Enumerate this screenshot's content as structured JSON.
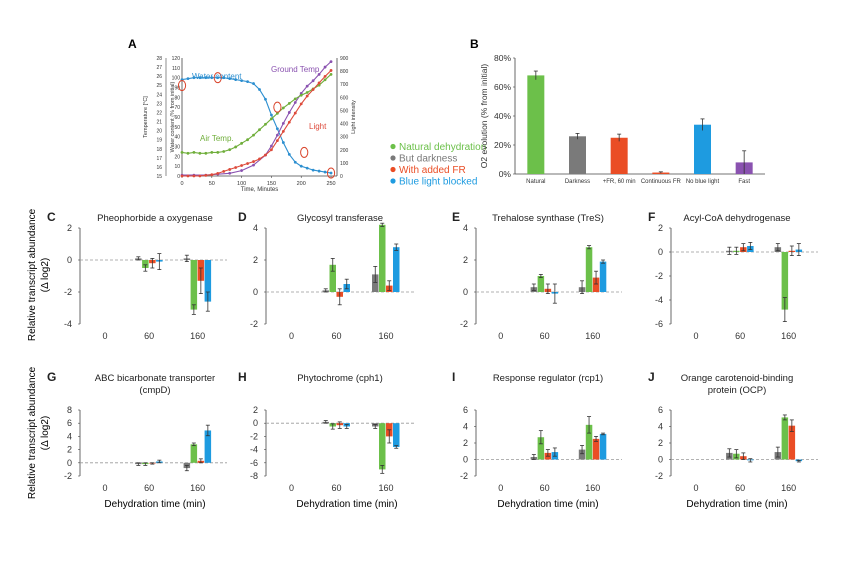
{
  "colors": {
    "natural": "#6cc04a",
    "dark": "#7a7a7a",
    "fr": "#ea4d25",
    "noblue": "#1e9be0",
    "water": "#2d8fd0",
    "ground": "#8a52b0",
    "air": "#6fae3a",
    "light_line": "#dd4a3b",
    "axis": "#444444"
  },
  "legend": {
    "items": [
      {
        "label": "Natural dehydration",
        "color": "#6cc04a"
      },
      {
        "label": "But darkness",
        "color": "#7a7a7a"
      },
      {
        "label": "With added FR",
        "color": "#ea4d25"
      },
      {
        "label": "Blue light blocked",
        "color": "#1e9be0"
      }
    ]
  },
  "row_ylabel": [
    "Relative transcript abundance",
    "(Δ log2)"
  ],
  "xlabel_bottom": "Dehydration time (min)",
  "chart_data": [
    {
      "id": "A",
      "type": "line",
      "xlabel": "Time, Minutes",
      "ylabel_left": "Temperature [°C]",
      "ylabel_mid": "Water content (% from initial)",
      "ylabel_right": "Light intensity",
      "x_ticks": [
        0,
        50,
        100,
        150,
        200,
        250
      ],
      "xlim": [
        0,
        260
      ],
      "temp_ticks": [
        15,
        16,
        17,
        18,
        19,
        20,
        21,
        22,
        23,
        24,
        25,
        26,
        27,
        28
      ],
      "temp_lim": [
        15,
        28
      ],
      "water_ticks": [
        0,
        10,
        20,
        30,
        40,
        50,
        60,
        70,
        80,
        90,
        100,
        110,
        120
      ],
      "water_lim": [
        0,
        120
      ],
      "light_ticks": [
        0,
        100,
        200,
        300,
        400,
        500,
        600,
        700,
        800,
        900
      ],
      "light_lim": [
        0,
        900
      ],
      "annotations": {
        "water": "Water content",
        "ground": "Ground Temp",
        "air": "Air Temp.",
        "light": "Light"
      },
      "series": [
        {
          "name": "Water content",
          "axis": "water",
          "color_key": "water",
          "x": [
            0,
            10,
            20,
            30,
            40,
            50,
            60,
            70,
            80,
            90,
            100,
            110,
            120,
            130,
            140,
            150,
            160,
            170,
            180,
            190,
            200,
            210,
            220,
            230,
            240,
            250
          ],
          "y": [
            98,
            99,
            100,
            100,
            100,
            100,
            100,
            100,
            99,
            98,
            97,
            96,
            94,
            88,
            78,
            62,
            48,
            34,
            22,
            14,
            10,
            8,
            6,
            5,
            4,
            3
          ]
        },
        {
          "name": "Ground Temp",
          "axis": "temp",
          "color_key": "ground",
          "x": [
            0,
            20,
            40,
            60,
            80,
            100,
            120,
            140,
            150,
            160,
            170,
            180,
            190,
            200,
            210,
            220,
            230,
            240,
            250
          ],
          "y": [
            15.1,
            15.1,
            15.1,
            15.2,
            15.3,
            15.6,
            16.2,
            17.3,
            18.3,
            19.5,
            20.8,
            22.0,
            23.1,
            24.1,
            24.9,
            25.5,
            26.2,
            27.0,
            27.6
          ]
        },
        {
          "name": "Air Temp.",
          "axis": "temp",
          "color_key": "air",
          "x": [
            0,
            10,
            20,
            30,
            40,
            50,
            60,
            70,
            80,
            90,
            100,
            110,
            120,
            130,
            140,
            150,
            160,
            170,
            180,
            190,
            200,
            210,
            220,
            230,
            240,
            250
          ],
          "y": [
            17.6,
            17.5,
            17.6,
            17.5,
            17.5,
            17.6,
            17.6,
            17.7,
            17.9,
            18.2,
            18.6,
            19.0,
            19.5,
            20.1,
            20.7,
            21.3,
            21.9,
            22.5,
            23.0,
            23.5,
            23.9,
            24.2,
            24.6,
            25.0,
            25.6,
            26.2
          ]
        },
        {
          "name": "Light",
          "axis": "light",
          "color_key": "light_line",
          "x": [
            0,
            10,
            20,
            30,
            40,
            50,
            60,
            70,
            80,
            90,
            100,
            110,
            120,
            130,
            140,
            150,
            160,
            170,
            180,
            190,
            200,
            210,
            220,
            230,
            240,
            250
          ],
          "y": [
            0,
            0,
            0,
            0,
            5,
            10,
            20,
            35,
            50,
            65,
            80,
            95,
            110,
            130,
            160,
            200,
            270,
            340,
            410,
            480,
            550,
            610,
            660,
            710,
            760,
            805
          ]
        }
      ],
      "circled_points": [
        {
          "x": 0,
          "y": 92
        },
        {
          "x": 60,
          "y": 100
        },
        {
          "x": 160,
          "y": 70
        },
        {
          "x": 205,
          "y": 24
        },
        {
          "x": 250,
          "y": 3
        }
      ]
    },
    {
      "id": "B",
      "type": "bar",
      "ylabel": "O2 evolution (% from initial)",
      "y_ticks": [
        "0%",
        "20%",
        "40%",
        "60%",
        "80%"
      ],
      "ylim": [
        0,
        80
      ],
      "categories": [
        "Natural",
        "Darkness",
        "+FR, 60 min",
        "Continuous FR",
        "No blue light",
        "Fast"
      ],
      "values": [
        68,
        26,
        25,
        1,
        34,
        8
      ],
      "errors": [
        3,
        2,
        2.5,
        0.5,
        4,
        8
      ],
      "color_keys": [
        "natural",
        "dark",
        "fr",
        "fr",
        "noblue",
        "ground"
      ]
    },
    {
      "id": "C",
      "type": "bar",
      "title": "Pheophorbide a oxygenase",
      "ylim": [
        -4,
        2
      ],
      "y_ticks": [
        -4,
        -2,
        0,
        2
      ],
      "categories": [
        "0",
        "60",
        "160"
      ],
      "series_keys": [
        "dark",
        "natural",
        "fr",
        "noblue"
      ],
      "values": [
        [
          0,
          0,
          0,
          0
        ],
        [
          0.1,
          -0.5,
          -0.2,
          -0.1
        ],
        [
          0.1,
          -3.1,
          -1.3,
          -2.6
        ]
      ],
      "errors": [
        [
          0,
          0,
          0,
          0
        ],
        [
          0.1,
          0.2,
          0.3,
          0.5
        ],
        [
          0.2,
          0.3,
          0.8,
          0.6
        ]
      ]
    },
    {
      "id": "D",
      "type": "bar",
      "title": "Glycosyl transferase",
      "ylim": [
        -2,
        4
      ],
      "y_ticks": [
        -2,
        0,
        2,
        4
      ],
      "categories": [
        "0",
        "60",
        "160"
      ],
      "series_keys": [
        "dark",
        "natural",
        "fr",
        "noblue"
      ],
      "values": [
        [
          0,
          0,
          0,
          0
        ],
        [
          0.1,
          1.7,
          -0.3,
          0.5
        ],
        [
          1.1,
          4.2,
          0.4,
          2.8
        ]
      ],
      "errors": [
        [
          0,
          0,
          0,
          0
        ],
        [
          0.1,
          0.4,
          0.5,
          0.3
        ],
        [
          0.5,
          0.1,
          0.3,
          0.2
        ]
      ]
    },
    {
      "id": "E",
      "type": "bar",
      "title": "Trehalose synthase (TreS)",
      "ylim": [
        -2,
        4
      ],
      "y_ticks": [
        -2,
        0,
        2,
        4
      ],
      "categories": [
        "0",
        "60",
        "160"
      ],
      "series_keys": [
        "dark",
        "natural",
        "fr",
        "noblue"
      ],
      "values": [
        [
          0,
          0,
          0,
          0
        ],
        [
          0.3,
          1.0,
          0.2,
          -0.1
        ],
        [
          0.3,
          2.8,
          0.9,
          1.9
        ]
      ],
      "errors": [
        [
          0,
          0,
          0,
          0
        ],
        [
          0.2,
          0.1,
          0.3,
          0.6
        ],
        [
          0.4,
          0.1,
          0.4,
          0.1
        ]
      ]
    },
    {
      "id": "F",
      "type": "bar",
      "title": "Acyl-CoA dehydrogenase",
      "ylim": [
        -6,
        2
      ],
      "y_ticks": [
        -6,
        -4,
        -2,
        0,
        2
      ],
      "categories": [
        "0",
        "60",
        "160"
      ],
      "series_keys": [
        "dark",
        "natural",
        "fr",
        "noblue"
      ],
      "values": [
        [
          0,
          0,
          0,
          0
        ],
        [
          0.1,
          0.1,
          0.4,
          0.5
        ],
        [
          0.4,
          -4.8,
          0.1,
          0.2
        ]
      ],
      "errors": [
        [
          0,
          0,
          0,
          0
        ],
        [
          0.3,
          0.3,
          0.3,
          0.3
        ],
        [
          0.3,
          1.0,
          0.4,
          0.5
        ]
      ]
    },
    {
      "id": "G",
      "type": "bar",
      "title": "ABC bicarbonate transporter (cmpD)",
      "ylim": [
        -2,
        8
      ],
      "y_ticks": [
        -2,
        0,
        2,
        4,
        6,
        8
      ],
      "categories": [
        "0",
        "60",
        "160"
      ],
      "series_keys": [
        "dark",
        "natural",
        "fr",
        "noblue"
      ],
      "values": [
        [
          0,
          0,
          0,
          0
        ],
        [
          -0.2,
          -0.2,
          -0.1,
          0.2
        ],
        [
          -0.8,
          2.8,
          0.3,
          4.9
        ]
      ],
      "errors": [
        [
          0,
          0,
          0,
          0
        ],
        [
          0.2,
          0.2,
          0.1,
          0.2
        ],
        [
          0.4,
          0.2,
          0.3,
          0.8
        ]
      ]
    },
    {
      "id": "H",
      "type": "bar",
      "title": "Phytochrome (cph1)",
      "ylim": [
        -8,
        2
      ],
      "y_ticks": [
        -8,
        -6,
        -4,
        -2,
        0,
        2
      ],
      "categories": [
        "0",
        "60",
        "160"
      ],
      "series_keys": [
        "dark",
        "natural",
        "fr",
        "noblue"
      ],
      "values": [
        [
          0,
          0,
          0,
          0
        ],
        [
          0.2,
          -0.5,
          -0.3,
          -0.5
        ],
        [
          -0.5,
          -7.0,
          -2.0,
          -3.6
        ]
      ],
      "errors": [
        [
          0,
          0,
          0,
          0
        ],
        [
          0.2,
          0.4,
          0.5,
          0.3
        ],
        [
          0.3,
          0.6,
          1.0,
          0.2
        ]
      ]
    },
    {
      "id": "I",
      "type": "bar",
      "title": "Response regulator (rcp1)",
      "ylim": [
        -2,
        6
      ],
      "y_ticks": [
        -2,
        0,
        2,
        4,
        6
      ],
      "categories": [
        "0",
        "60",
        "160"
      ],
      "series_keys": [
        "dark",
        "natural",
        "fr",
        "noblue"
      ],
      "values": [
        [
          0,
          0,
          0,
          0
        ],
        [
          0.3,
          2.7,
          0.8,
          0.9
        ],
        [
          1.2,
          4.2,
          2.5,
          3.1
        ]
      ],
      "errors": [
        [
          0,
          0,
          0,
          0
        ],
        [
          0.3,
          0.8,
          0.4,
          0.5
        ],
        [
          0.5,
          1.0,
          0.3,
          0.1
        ]
      ]
    },
    {
      "id": "J",
      "type": "bar",
      "title": "Orange carotenoid-binding protein (OCP)",
      "ylim": [
        -2,
        6
      ],
      "y_ticks": [
        -2,
        0,
        2,
        4,
        6
      ],
      "categories": [
        "0",
        "60",
        "160"
      ],
      "series_keys": [
        "dark",
        "natural",
        "fr",
        "noblue"
      ],
      "values": [
        [
          0,
          0,
          0,
          0
        ],
        [
          0.8,
          0.7,
          0.4,
          -0.1
        ],
        [
          0.9,
          5.1,
          4.1,
          -0.2
        ]
      ],
      "errors": [
        [
          0,
          0,
          0,
          0
        ],
        [
          0.5,
          0.5,
          0.4,
          0.2
        ],
        [
          0.6,
          0.3,
          0.7,
          0.1
        ]
      ]
    }
  ]
}
